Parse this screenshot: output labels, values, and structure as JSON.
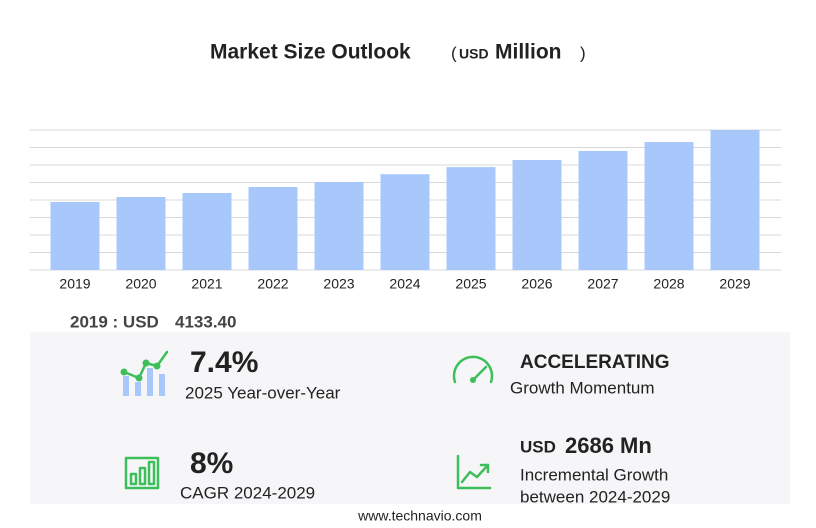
{
  "chart_data": {
    "type": "bar",
    "title": "Market Size Outlook",
    "unit_open": "(",
    "unit_currency": "USD",
    "unit_name": "Million",
    "unit_close": ")",
    "categories": [
      "2019",
      "2020",
      "2021",
      "2022",
      "2023",
      "2024",
      "2025",
      "2026",
      "2027",
      "2028",
      "2029"
    ],
    "values": [
      4133.4,
      4437,
      4680,
      5045,
      5349,
      5823,
      6254,
      6686,
      7233,
      7780,
      8509
    ],
    "color": "#a8c8fb",
    "ylim": [
      0,
      8509
    ]
  },
  "summary": {
    "label": "2019 : USD",
    "value": "4133.40"
  },
  "kpis": [
    {
      "value": "7.4%",
      "label": "2025 Year-over-Year"
    },
    {
      "value": "ACCELERATING",
      "label": "Growth Momentum"
    },
    {
      "value": "8%",
      "label": "CAGR 2024-2029"
    },
    {
      "currency": "USD",
      "value": "2686 Mn",
      "label_lines": [
        "Incremental Growth",
        "between 2024-2029"
      ]
    }
  ],
  "footer": "www.technavio.com"
}
